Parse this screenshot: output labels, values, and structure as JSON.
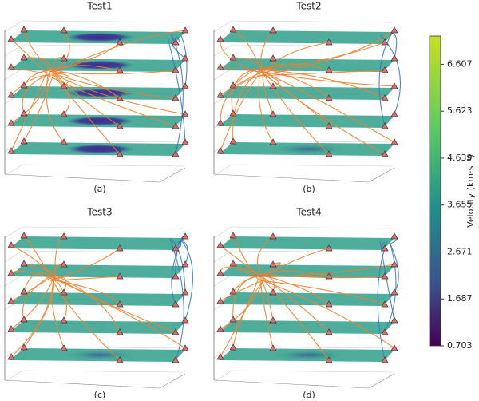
{
  "panels": [
    {
      "title": "Test1",
      "caption": "(a)"
    },
    {
      "title": "Test2",
      "caption": "(b)"
    },
    {
      "title": "Test3",
      "caption": "(c)"
    },
    {
      "title": "Test4",
      "caption": "(d)"
    }
  ],
  "colorbar": {
    "label": "Velocity (km·s⁻¹)",
    "lim": [
      0.703,
      7.2
    ],
    "ticks": [
      0.703,
      1.687,
      2.671,
      3.655,
      4.639,
      5.623,
      6.607
    ]
  }
}
